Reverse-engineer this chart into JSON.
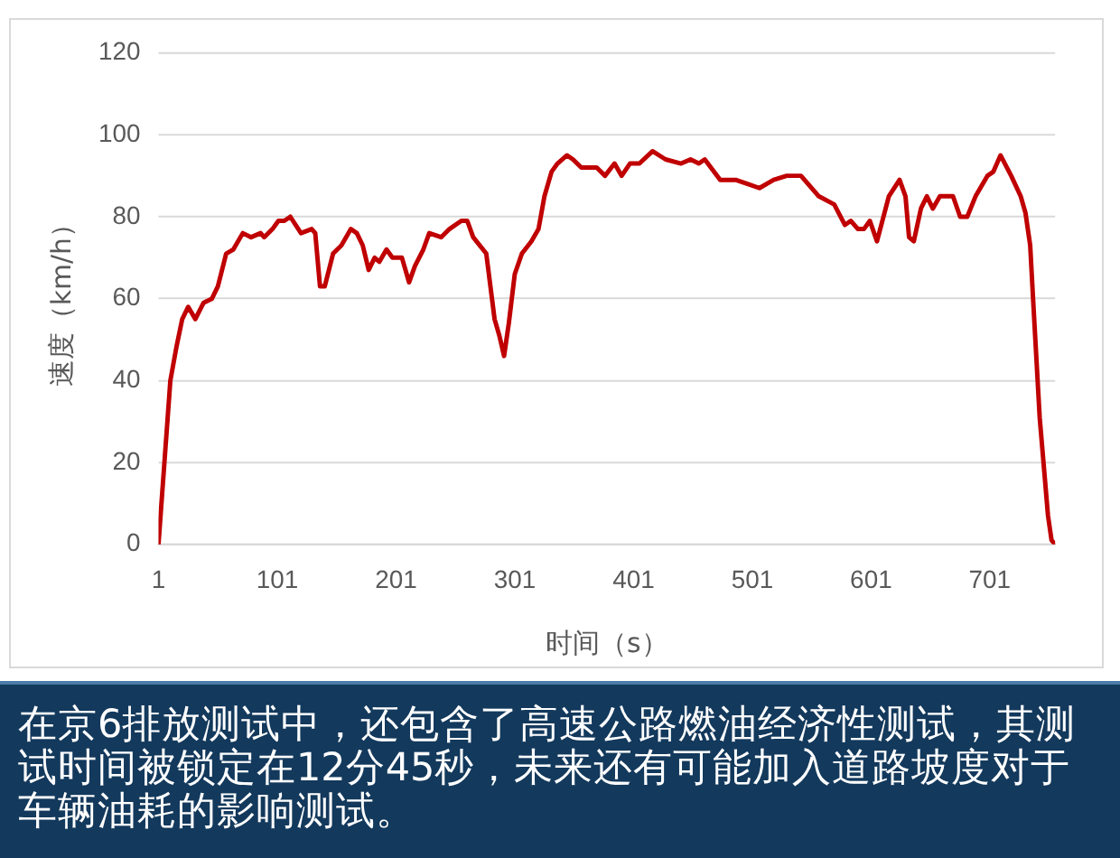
{
  "chart_data": {
    "type": "line",
    "xlabel": "时间（s）",
    "ylabel": "速度（km/h）",
    "x": [
      1,
      6,
      11,
      16,
      21,
      26,
      32,
      39,
      46,
      51,
      58,
      64,
      72,
      79,
      87,
      90,
      97,
      102,
      107,
      112,
      121,
      130,
      133,
      137,
      141,
      148,
      155,
      163,
      168,
      173,
      178,
      183,
      187,
      193,
      198,
      206,
      212,
      217,
      224,
      229,
      239,
      246,
      256,
      261,
      266,
      277,
      284,
      288,
      292,
      296,
      301,
      307,
      315,
      321,
      326,
      332,
      337,
      345,
      350,
      357,
      370,
      377,
      385,
      391,
      398,
      406,
      417,
      428,
      441,
      449,
      456,
      461,
      474,
      487,
      497,
      507,
      519,
      530,
      542,
      557,
      570,
      579,
      584,
      590,
      595,
      600,
      606,
      616,
      625,
      630,
      633,
      637,
      643,
      648,
      653,
      659,
      665,
      670,
      676,
      682,
      689,
      699,
      704,
      710,
      719,
      727,
      731,
      735,
      738,
      743,
      750,
      753,
      756
    ],
    "series": [
      {
        "color": "#c00000",
        "values": [
          0,
          20,
          40,
          48,
          55,
          58,
          55,
          59,
          60,
          63,
          71,
          72,
          76,
          75,
          76,
          75,
          77,
          79,
          79,
          80,
          76,
          77,
          76,
          63,
          63,
          71,
          73,
          77,
          76,
          73,
          67,
          70,
          69,
          72,
          70,
          70,
          64,
          68,
          72,
          76,
          75,
          77,
          79,
          79,
          75,
          71,
          55,
          51,
          46,
          54,
          66,
          71,
          74,
          77,
          85,
          91,
          93,
          95,
          94,
          92,
          92,
          90,
          93,
          90,
          93,
          93,
          96,
          94,
          93,
          94,
          93,
          94,
          89,
          89,
          88,
          87,
          89,
          90,
          90,
          85,
          83,
          78,
          79,
          77,
          77,
          79,
          74,
          85,
          89,
          85,
          75,
          74,
          82,
          85,
          82,
          85,
          85,
          85,
          80,
          80,
          85,
          90,
          91,
          95,
          90,
          85,
          81,
          73,
          57,
          31,
          7,
          1,
          0
        ]
      }
    ],
    "xlim": [
      1,
      756
    ],
    "xticks": [
      1,
      101,
      201,
      301,
      401,
      501,
      601,
      701
    ],
    "ylim": [
      0,
      120
    ],
    "yticks": [
      0,
      20,
      40,
      60,
      80,
      100,
      120
    ],
    "grid": "y",
    "marker": "none",
    "annotations": [
      "在京6排放测试中，还包含了高速公路燃油经济性测试，其测试时间被锁定在12分45秒，未来还有可能加入道路坡度对于车辆油耗的影响测试。"
    ]
  }
}
